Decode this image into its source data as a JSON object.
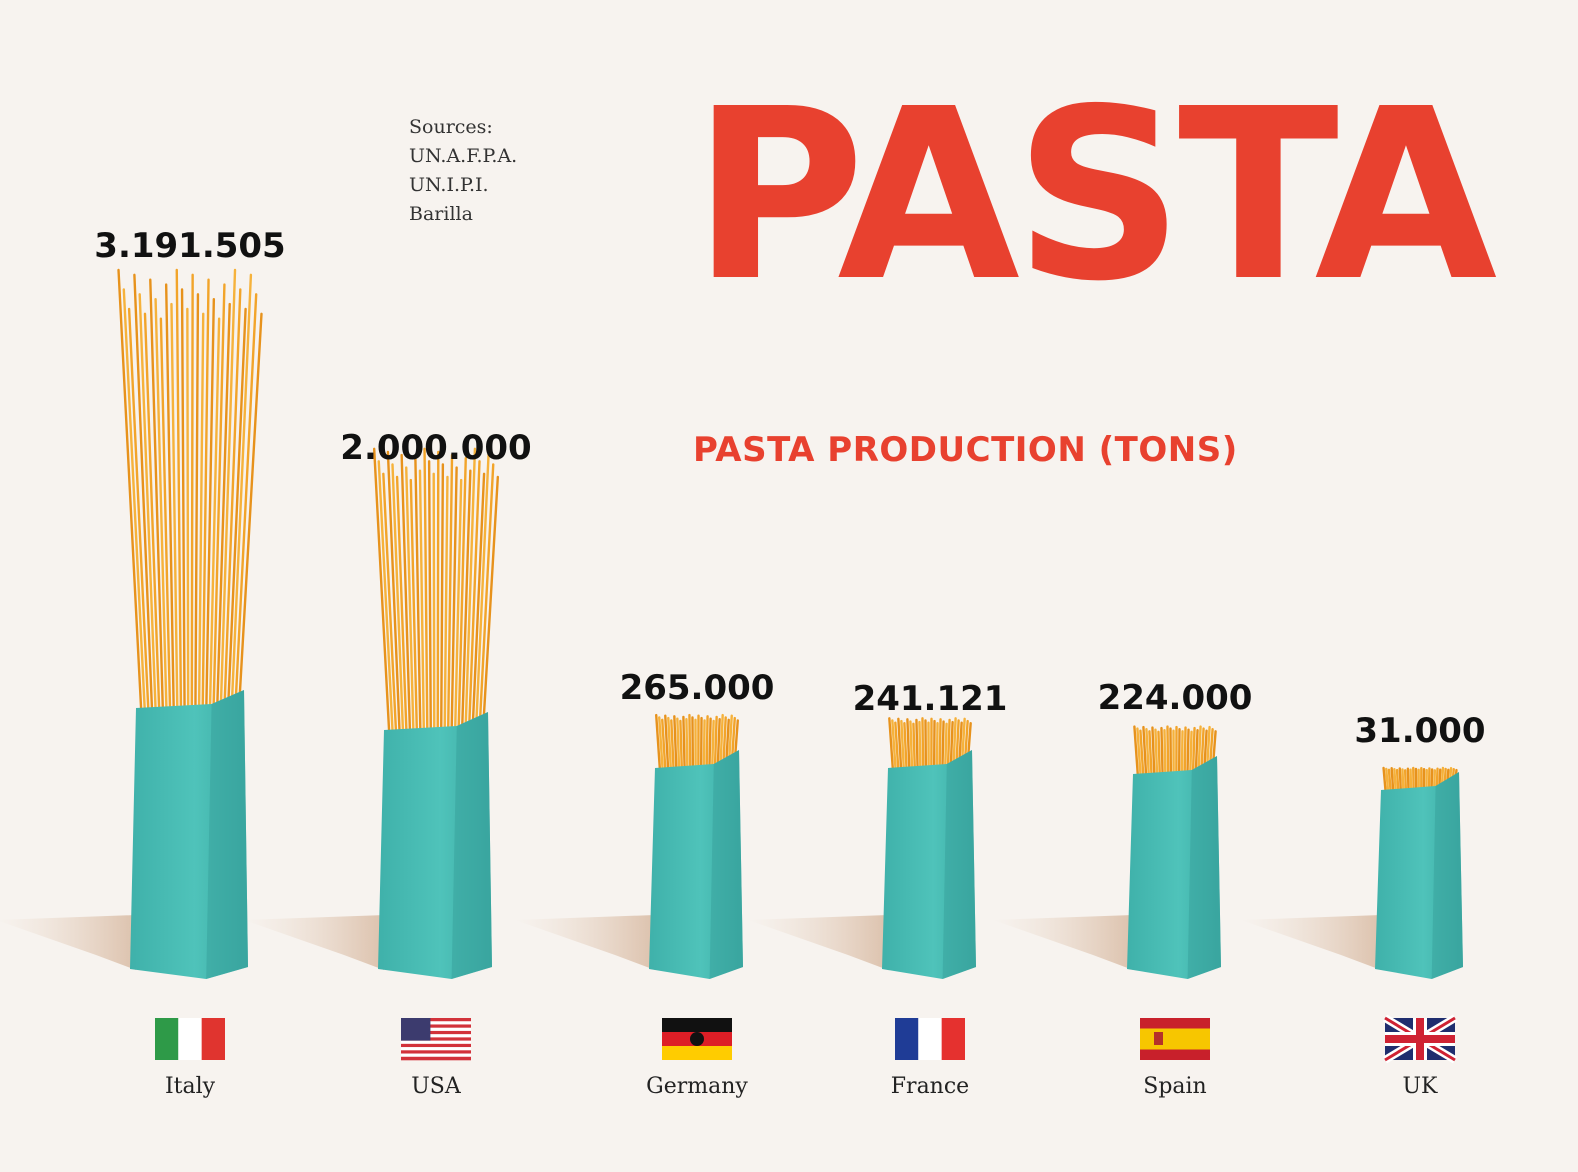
{
  "title": "PASTA",
  "subtitle": "PASTA PRODUCTION (TONS)",
  "sources": [
    "Sources:",
    "UN.A.F.P.A.",
    "UN.I.P.I.",
    "Barilla"
  ],
  "colors": {
    "title": "#e8412f",
    "bag": "#46bdb5",
    "pasta": "#f2a42a",
    "background": "#f7f3ef"
  },
  "chart_data": {
    "type": "bar",
    "categories": [
      "Italy",
      "USA",
      "Germany",
      "France",
      "Spain",
      "UK"
    ],
    "values": [
      3191505,
      2000000,
      265000,
      241121,
      224000,
      31000
    ],
    "value_labels": [
      "3.191.505",
      "2.000.000",
      "265.000",
      "241.121",
      "224.000",
      "31.000"
    ],
    "flags": [
      "italy-flag",
      "usa-flag",
      "germany-flag",
      "france-flag",
      "spain-flag",
      "uk-flag"
    ],
    "title": "PASTA PRODUCTION (TONS)",
    "xlabel": "",
    "ylabel": "",
    "grid": false,
    "legend": "none"
  }
}
